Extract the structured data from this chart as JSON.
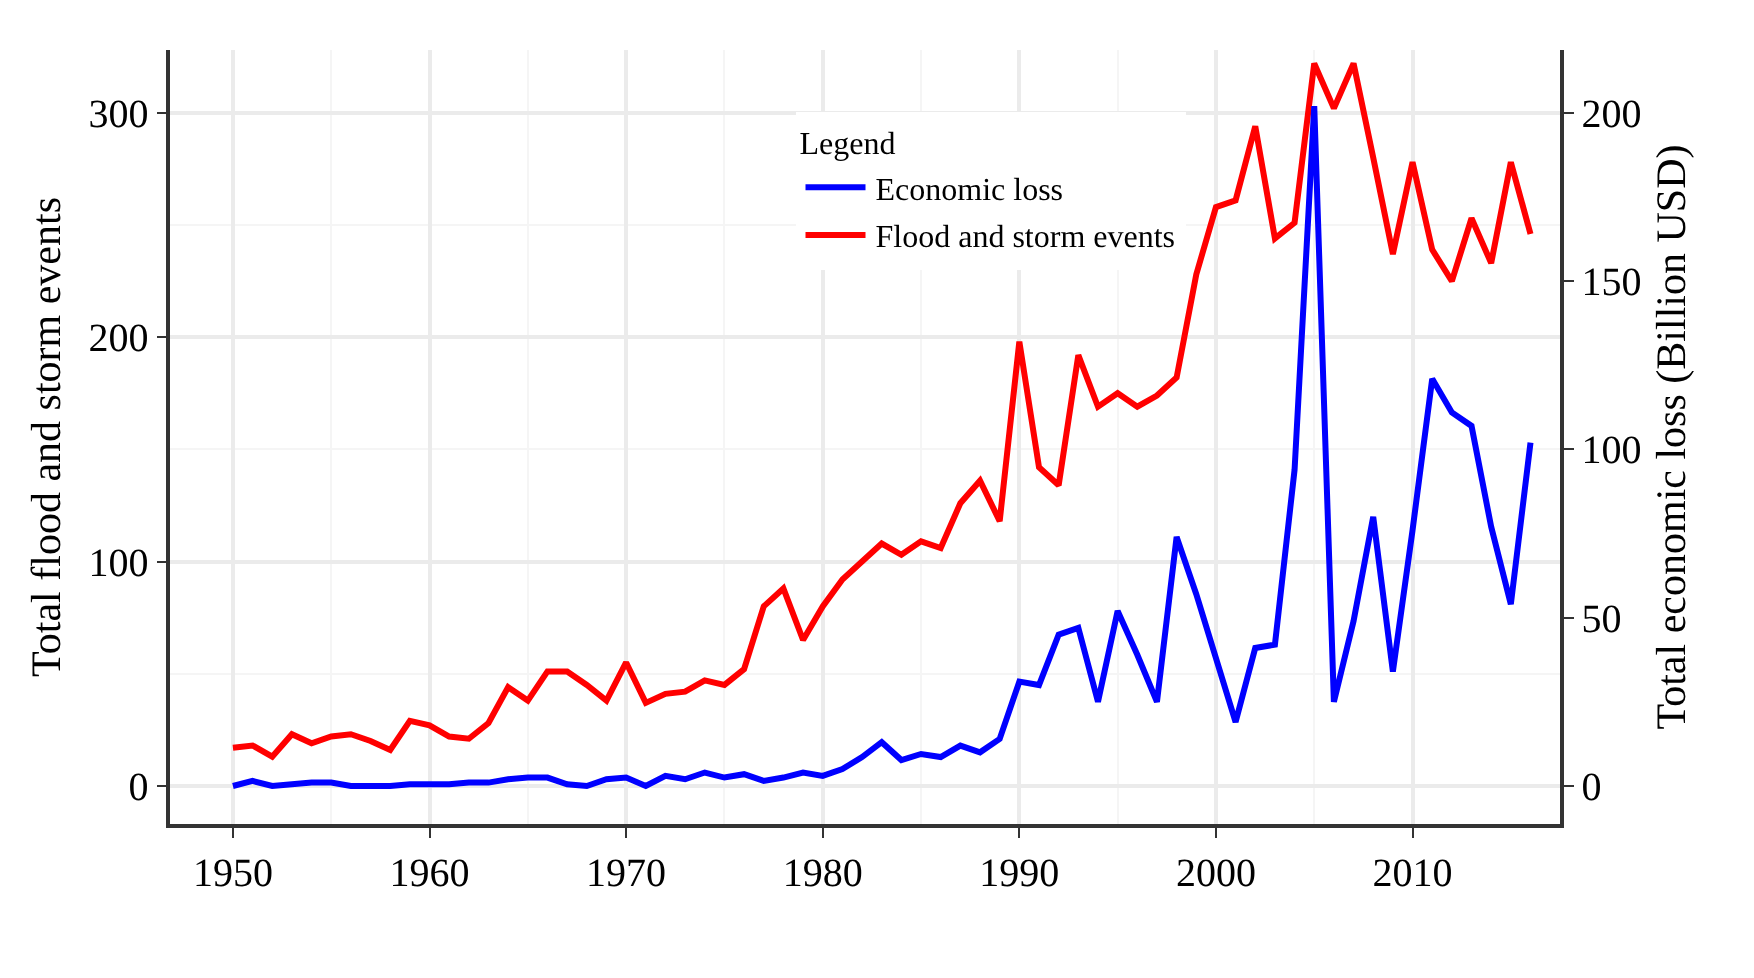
{
  "chart_data": {
    "type": "line",
    "xlabel": null,
    "ylabel": "Total flood and storm events",
    "y2label": "Total economic loss (Billion USD)",
    "legend_title": "Legend",
    "legend": "top",
    "grid": true,
    "x": [
      1950,
      1951,
      1952,
      1953,
      1954,
      1955,
      1956,
      1957,
      1958,
      1959,
      1960,
      1961,
      1962,
      1963,
      1964,
      1965,
      1966,
      1967,
      1968,
      1969,
      1970,
      1971,
      1972,
      1973,
      1974,
      1975,
      1976,
      1977,
      1978,
      1979,
      1980,
      1981,
      1982,
      1983,
      1984,
      1985,
      1986,
      1987,
      1988,
      1989,
      1990,
      1991,
      1992,
      1993,
      1994,
      1995,
      1996,
      1997,
      1998,
      1999,
      2000,
      2001,
      2002,
      2003,
      2004,
      2005,
      2006,
      2007,
      2008,
      2009,
      2010,
      2011,
      2012,
      2013,
      2014,
      2015,
      2016
    ],
    "series": [
      {
        "name": "Economic loss",
        "color": "#0000ff",
        "axis": "y2",
        "values": [
          0,
          1.5,
          0,
          0.5,
          1,
          1,
          0,
          0,
          0,
          0.5,
          0.5,
          0.5,
          1,
          1,
          2,
          2.5,
          2.5,
          0.5,
          0,
          2,
          2.5,
          0,
          3,
          2,
          4,
          2.5,
          3.5,
          1.5,
          2.5,
          4,
          3,
          5,
          8.6,
          13,
          7.7,
          9.5,
          8.6,
          12,
          10,
          14,
          31,
          30,
          45,
          47,
          25,
          52,
          39,
          25,
          74,
          57,
          38,
          19,
          41,
          42,
          94,
          202,
          25,
          49,
          80,
          34,
          76,
          121,
          111,
          107,
          77,
          54,
          102
        ]
      },
      {
        "name": "Flood and storm events",
        "color": "#ff0000",
        "values": [
          17,
          18,
          13,
          23,
          19,
          22,
          23,
          20,
          16,
          29,
          27,
          22,
          21,
          28,
          44,
          38,
          51,
          51,
          45,
          38,
          55,
          37,
          41,
          42,
          47,
          45,
          52,
          80,
          88,
          65,
          80,
          92,
          100,
          108,
          103,
          109,
          106,
          126,
          136,
          118,
          198,
          142,
          134,
          192,
          169,
          175,
          169,
          174,
          182,
          228,
          258,
          261,
          294,
          244,
          251,
          322,
          302,
          322,
          280,
          237,
          278,
          239,
          225,
          253,
          233,
          278,
          246
        ]
      }
    ],
    "xlim": [
      1946.8,
      2017.5
    ],
    "xticks": [
      1950,
      1960,
      1970,
      1980,
      1990,
      2000,
      2010
    ],
    "ylim": [
      -17,
      328
    ],
    "yticks": [
      0,
      100,
      200,
      300
    ],
    "y2lim": [
      -11.3,
      218.7
    ],
    "y2ticks": [
      0,
      50,
      100,
      150,
      200
    ]
  }
}
